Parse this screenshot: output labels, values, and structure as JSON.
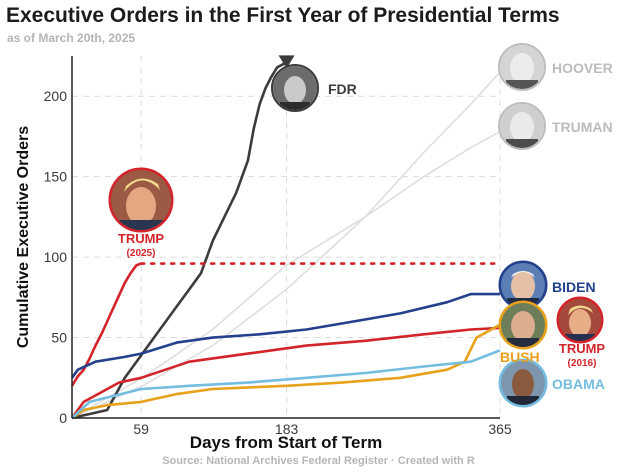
{
  "chart_data": {
    "type": "line",
    "title": "Executive Orders in the First Year of Presidential Terms",
    "subtitle": "as of March 20th, 2025",
    "xlabel": "Days from Start of Term",
    "ylabel": "Cumulative Executive Orders",
    "source": "Source: National Archives Federal Register  ·  Created with R",
    "xlim": [
      0,
      365
    ],
    "ylim": [
      0,
      225
    ],
    "x_ticks": [
      59,
      183,
      365
    ],
    "x_tick_labels": [
      "59",
      "183",
      "365"
    ],
    "y_ticks": [
      0,
      50,
      100,
      150,
      200
    ],
    "y_tick_labels": [
      "0",
      "50",
      "100",
      "150",
      "200"
    ],
    "grid": true,
    "colors": {
      "trump2025": "#d3242a",
      "fdr": "#3c3c3c",
      "biden": "#22408c",
      "trump2016": "#d3242a",
      "bush": "#e8a11a",
      "obama": "#74bde0",
      "background_series": "#dedede",
      "gridline": "#dcdcdc"
    },
    "series": [
      {
        "name": "FDR",
        "color": "#3c3c3c",
        "x": [
          0,
          30,
          45,
          60,
          75,
          90,
          100,
          110,
          120,
          130,
          140,
          150,
          155,
          160,
          165,
          170,
          175,
          183
        ],
        "y": [
          0,
          5,
          25,
          40,
          55,
          70,
          80,
          90,
          110,
          125,
          140,
          160,
          180,
          195,
          205,
          212,
          218,
          221
        ],
        "end_marker": "triangle"
      },
      {
        "name": "TRUMP (2025)",
        "color": "#d3242a",
        "x": [
          0,
          5,
          10,
          15,
          20,
          25,
          30,
          35,
          40,
          45,
          50,
          55,
          59
        ],
        "y": [
          20,
          26,
          30,
          37,
          45,
          52,
          60,
          68,
          76,
          84,
          90,
          95,
          96
        ],
        "projection": {
          "x": [
            59,
            365
          ],
          "y": [
            96,
            96
          ]
        }
      },
      {
        "name": "HOOVER",
        "color": "#dedede",
        "x": [
          0,
          60,
          120,
          183,
          250,
          300,
          340,
          365
        ],
        "y": [
          0,
          20,
          45,
          80,
          125,
          165,
          195,
          215
        ]
      },
      {
        "name": "TRUMAN",
        "color": "#dedede",
        "x": [
          0,
          60,
          120,
          183,
          250,
          300,
          340,
          365
        ],
        "y": [
          0,
          25,
          55,
          95,
          125,
          150,
          168,
          178
        ]
      },
      {
        "name": "BIDEN",
        "color": "#22408c",
        "x": [
          0,
          5,
          20,
          45,
          59,
          90,
          120,
          160,
          200,
          240,
          280,
          320,
          340,
          365
        ],
        "y": [
          25,
          30,
          35,
          38,
          40,
          47,
          50,
          52,
          55,
          60,
          65,
          72,
          77,
          77
        ]
      },
      {
        "name": "TRUMP (2016)",
        "color": "#d3242a",
        "x": [
          0,
          10,
          40,
          59,
          100,
          150,
          200,
          250,
          300,
          340,
          365
        ],
        "y": [
          0,
          10,
          22,
          25,
          35,
          40,
          45,
          48,
          52,
          55,
          56
        ]
      },
      {
        "name": "BUSH",
        "color": "#e8a11a",
        "x": [
          0,
          10,
          30,
          59,
          90,
          120,
          183,
          230,
          280,
          320,
          335,
          345,
          365
        ],
        "y": [
          0,
          5,
          8,
          10,
          15,
          18,
          20,
          22,
          25,
          30,
          35,
          50,
          58
        ]
      },
      {
        "name": "OBAMA",
        "color": "#74bde0",
        "x": [
          0,
          15,
          59,
          100,
          150,
          183,
          250,
          300,
          340,
          365
        ],
        "y": [
          0,
          10,
          18,
          20,
          22,
          24,
          28,
          32,
          35,
          42
        ]
      }
    ],
    "annotations": [
      {
        "text": "FDR",
        "color": "#3c3c3c"
      },
      {
        "text": "HOOVER",
        "color": "#bcbcbc"
      },
      {
        "text": "TRUMAN",
        "color": "#bcbcbc"
      },
      {
        "text": "TRUMP",
        "sub": "(2025)",
        "color": "#d3242a"
      },
      {
        "text": "BIDEN",
        "color": "#22408c"
      },
      {
        "text": "TRUMP",
        "sub": "(2016)",
        "color": "#d3242a"
      },
      {
        "text": "BUSH",
        "color": "#e8a11a"
      },
      {
        "text": "OBAMA",
        "color": "#74bde0"
      }
    ]
  }
}
